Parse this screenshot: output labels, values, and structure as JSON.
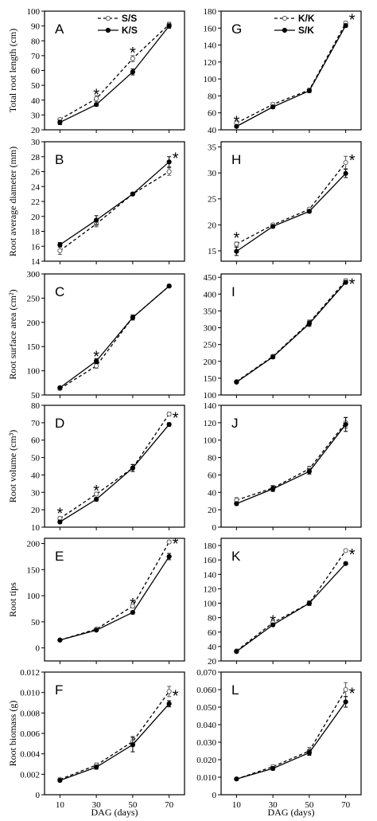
{
  "figure": {
    "x_categories": [
      10,
      30,
      50,
      70
    ],
    "xlabel": "DAG (days)"
  },
  "chart_data": [
    {
      "id": "A",
      "type": "line",
      "letter": "A",
      "ylabel": "Total root length (cm)",
      "ylim": [
        20,
        100
      ],
      "yticks": [
        20,
        30,
        40,
        50,
        60,
        70,
        80,
        90,
        100
      ],
      "legend": [
        "S/S",
        "K/S"
      ],
      "series": [
        {
          "name": "S/S",
          "style": "dashed-open",
          "values": [
            27,
            41,
            68,
            91
          ],
          "err": [
            1,
            2,
            2,
            1.5
          ]
        },
        {
          "name": "K/S",
          "style": "solid-filled",
          "values": [
            25,
            37,
            59,
            90
          ],
          "err": [
            1.5,
            1,
            2,
            1.5
          ]
        }
      ],
      "stars": [
        {
          "x": 30,
          "y": 44
        },
        {
          "x": 50,
          "y": 72
        }
      ]
    },
    {
      "id": "B",
      "type": "line",
      "letter": "B",
      "ylabel": "Root average diameter (mm)",
      "ylim": [
        14,
        30
      ],
      "yticks": [
        14,
        16,
        18,
        20,
        22,
        24,
        26,
        28,
        30
      ],
      "series": [
        {
          "name": "S/S",
          "style": "dashed-open",
          "values": [
            15.4,
            19.0,
            23.0,
            26.0
          ],
          "err": [
            0.5,
            0.4,
            0.2,
            0.5
          ]
        },
        {
          "name": "K/S",
          "style": "solid-filled",
          "values": [
            16.2,
            19.5,
            23.0,
            27.3
          ],
          "err": [
            0.3,
            0.6,
            0.2,
            0.7
          ]
        }
      ],
      "stars": [
        {
          "x": 70,
          "y": 27.8
        }
      ]
    },
    {
      "id": "C",
      "type": "line",
      "letter": "C",
      "ylabel": "Root surface area (cm²)",
      "ylim": [
        50,
        300
      ],
      "yticks": [
        50,
        100,
        150,
        200,
        250,
        300
      ],
      "series": [
        {
          "name": "S/S",
          "style": "dashed-open",
          "values": [
            63,
            110,
            210,
            275
          ],
          "err": [
            2,
            5,
            5,
            3
          ]
        },
        {
          "name": "K/S",
          "style": "solid-filled",
          "values": [
            65,
            120,
            210,
            275
          ],
          "err": [
            2,
            5,
            5,
            3
          ]
        }
      ],
      "stars": [
        {
          "x": 30,
          "y": 130
        }
      ]
    },
    {
      "id": "D",
      "type": "line",
      "letter": "D",
      "ylabel": "Root volume (cm³)",
      "ylim": [
        10,
        80
      ],
      "yticks": [
        10,
        20,
        30,
        40,
        50,
        60,
        70,
        80
      ],
      "series": [
        {
          "name": "S/S",
          "style": "dashed-open",
          "values": [
            15,
            29,
            44,
            75
          ],
          "err": [
            1,
            1,
            2,
            1
          ]
        },
        {
          "name": "K/S",
          "style": "solid-filled",
          "values": [
            13,
            26,
            44,
            69
          ],
          "err": [
            1,
            1,
            2,
            1
          ]
        }
      ],
      "stars": [
        {
          "x": 10,
          "y": 18
        },
        {
          "x": 30,
          "y": 31
        },
        {
          "x": 70,
          "y": 73
        }
      ]
    },
    {
      "id": "E",
      "type": "line",
      "letter": "E",
      "ylabel": "Root tips",
      "ylim": [
        -25,
        210
      ],
      "yticks": [
        0,
        50,
        100,
        150,
        200
      ],
      "series": [
        {
          "name": "S/S",
          "style": "dashed-open",
          "values": [
            15,
            36,
            80,
            203
          ],
          "err": [
            1,
            2,
            3,
            3
          ]
        },
        {
          "name": "K/S",
          "style": "solid-filled",
          "values": [
            15,
            34,
            68,
            175
          ],
          "err": [
            1,
            2,
            3,
            6
          ]
        }
      ],
      "stars": [
        {
          "x": 50,
          "y": 85
        },
        {
          "x": 70,
          "y": 200
        }
      ]
    },
    {
      "id": "F",
      "type": "line",
      "letter": "F",
      "ylabel": "Root biomass (g)",
      "ylim": [
        0,
        0.012
      ],
      "yticks": [
        0,
        0.002,
        0.004,
        0.006,
        0.008,
        0.01,
        0.012
      ],
      "series": [
        {
          "name": "S/S",
          "style": "dashed-open",
          "values": [
            0.0015,
            0.0029,
            0.0052,
            0.0101
          ],
          "err": [
            0.0001,
            0.0002,
            0.0005,
            0.0005
          ]
        },
        {
          "name": "K/S",
          "style": "solid-filled",
          "values": [
            0.0014,
            0.0027,
            0.0049,
            0.0089
          ],
          "err": [
            0.0001,
            0.0002,
            0.0007,
            0.0003
          ]
        }
      ],
      "stars": [
        {
          "x": 70,
          "y": 0.0097
        }
      ]
    },
    {
      "id": "G",
      "type": "line",
      "letter": "G",
      "ylabel": "",
      "ylim": [
        40,
        180
      ],
      "yticks": [
        40,
        60,
        80,
        100,
        120,
        140,
        160,
        180
      ],
      "legend": [
        "K/K",
        "S/K"
      ],
      "series": [
        {
          "name": "K/K",
          "style": "dashed-open",
          "values": [
            48,
            70,
            87,
            166
          ],
          "err": [
            1,
            2,
            2,
            2
          ]
        },
        {
          "name": "S/K",
          "style": "solid-filled",
          "values": [
            44,
            67,
            86,
            163
          ],
          "err": [
            1,
            2,
            2,
            2
          ]
        }
      ],
      "stars": [
        {
          "x": 10,
          "y": 50
        },
        {
          "x": 70,
          "y": 170
        }
      ]
    },
    {
      "id": "H",
      "type": "line",
      "letter": "H",
      "ylabel": "",
      "ylim": [
        13,
        36
      ],
      "yticks": [
        15,
        20,
        25,
        30,
        35
      ],
      "series": [
        {
          "name": "K/K",
          "style": "dashed-open",
          "values": [
            16.3,
            20.0,
            23.0,
            32.0
          ],
          "err": [
            0.4,
            0.3,
            0.3,
            1.2
          ]
        },
        {
          "name": "S/K",
          "style": "solid-filled",
          "values": [
            14.9,
            19.7,
            22.6,
            29.9
          ],
          "err": [
            0.8,
            0.3,
            0.3,
            0.8
          ]
        }
      ],
      "stars": [
        {
          "x": 10,
          "y": 17.5
        },
        {
          "x": 70,
          "y": 32.5
        }
      ]
    },
    {
      "id": "I",
      "type": "line",
      "letter": "I",
      "ylabel": "",
      "ylim": [
        100,
        460
      ],
      "yticks": [
        100,
        150,
        200,
        250,
        300,
        350,
        400,
        450
      ],
      "series": [
        {
          "name": "K/K",
          "style": "dashed-open",
          "values": [
            140,
            215,
            315,
            440
          ],
          "err": [
            3,
            5,
            8,
            5
          ]
        },
        {
          "name": "S/K",
          "style": "solid-filled",
          "values": [
            138,
            213,
            312,
            435
          ],
          "err": [
            3,
            5,
            8,
            5
          ]
        }
      ],
      "stars": [
        {
          "x": 70,
          "y": 430
        }
      ]
    },
    {
      "id": "J",
      "type": "line",
      "letter": "J",
      "ylabel": "",
      "ylim": [
        0,
        140
      ],
      "yticks": [
        0,
        20,
        40,
        60,
        80,
        100,
        120,
        140
      ],
      "series": [
        {
          "name": "K/K",
          "style": "dashed-open",
          "values": [
            31,
            45,
            67,
            120
          ],
          "err": [
            3,
            3,
            3,
            6
          ]
        },
        {
          "name": "S/K",
          "style": "solid-filled",
          "values": [
            27,
            44,
            64,
            118
          ],
          "err": [
            2,
            3,
            3,
            8
          ]
        }
      ],
      "stars": []
    },
    {
      "id": "K",
      "type": "line",
      "letter": "K",
      "ylabel": "",
      "ylim": [
        20,
        190
      ],
      "yticks": [
        20,
        40,
        60,
        80,
        100,
        120,
        140,
        160,
        180
      ],
      "series": [
        {
          "name": "K/K",
          "style": "dashed-open",
          "values": [
            34,
            73,
            100,
            173
          ],
          "err": [
            1,
            2,
            3,
            2
          ]
        },
        {
          "name": "S/K",
          "style": "solid-filled",
          "values": [
            33,
            70,
            100,
            155
          ],
          "err": [
            1,
            2,
            3,
            2
          ]
        }
      ],
      "stars": [
        {
          "x": 30,
          "y": 76
        },
        {
          "x": 70,
          "y": 168
        }
      ]
    },
    {
      "id": "L",
      "type": "line",
      "letter": "L",
      "ylabel": "",
      "ylim": [
        0,
        0.07
      ],
      "yticks": [
        0,
        0.01,
        0.02,
        0.03,
        0.04,
        0.05,
        0.06,
        0.07
      ],
      "series": [
        {
          "name": "K/K",
          "style": "dashed-open",
          "values": [
            0.009,
            0.016,
            0.025,
            0.06
          ],
          "err": [
            0.0005,
            0.001,
            0.002,
            0.004
          ]
        },
        {
          "name": "S/K",
          "style": "solid-filled",
          "values": [
            0.009,
            0.015,
            0.024,
            0.053
          ],
          "err": [
            0.0005,
            0.001,
            0.0015,
            0.003
          ]
        }
      ],
      "stars": [
        {
          "x": 70,
          "y": 0.058
        }
      ]
    }
  ]
}
